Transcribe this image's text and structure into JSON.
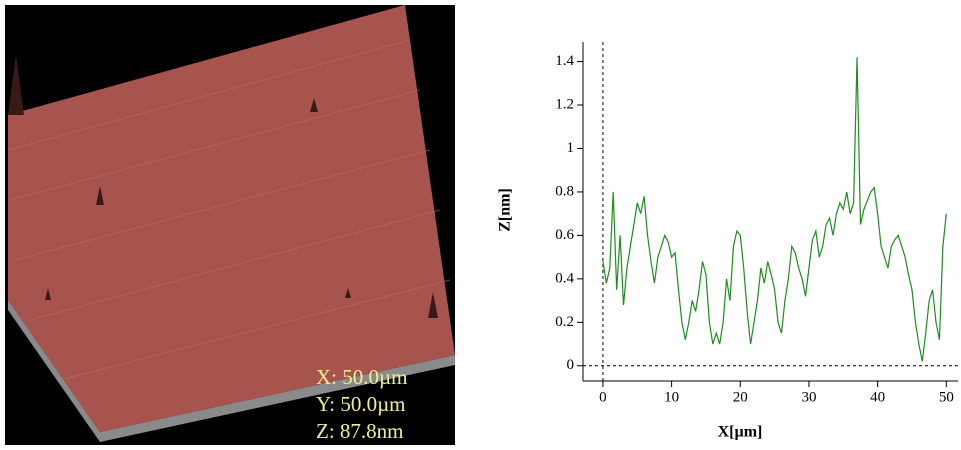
{
  "afm_image": {
    "labels": [
      "X: 50.0µm",
      "Y: 50.0µm",
      "Z: 87.8nm"
    ]
  },
  "chart_data": {
    "type": "line",
    "x_label": "X[µm]",
    "y_label": "Z[nm]",
    "x": [
      0,
      0.5,
      1,
      1.5,
      2,
      2.5,
      3,
      3.5,
      4,
      4.5,
      5,
      5.5,
      6,
      6.5,
      7,
      7.5,
      8,
      8.5,
      9,
      9.5,
      10,
      10.5,
      11,
      11.5,
      12,
      12.5,
      13,
      13.5,
      14,
      14.5,
      15,
      15.5,
      16,
      16.5,
      17,
      17.5,
      18,
      18.5,
      19,
      19.5,
      20,
      20.5,
      21,
      21.5,
      22,
      22.5,
      23,
      23.5,
      24,
      24.5,
      25,
      25.5,
      26,
      26.5,
      27,
      27.5,
      28,
      28.5,
      29,
      29.5,
      30,
      30.5,
      31,
      31.5,
      32,
      32.5,
      33,
      33.5,
      34,
      34.5,
      35,
      35.5,
      36,
      36.5,
      37,
      37.5,
      38,
      38.5,
      39,
      39.5,
      40,
      40.5,
      41,
      41.5,
      42,
      42.5,
      43,
      43.5,
      44,
      44.5,
      45,
      45.5,
      46,
      46.5,
      47,
      47.5,
      48,
      48.5,
      49,
      49.5,
      50
    ],
    "series": [
      {
        "color": "#1e8c1e",
        "values": [
          0.48,
          0.38,
          0.45,
          0.8,
          0.35,
          0.6,
          0.28,
          0.45,
          0.55,
          0.65,
          0.75,
          0.7,
          0.78,
          0.6,
          0.48,
          0.38,
          0.5,
          0.55,
          0.6,
          0.57,
          0.5,
          0.52,
          0.35,
          0.2,
          0.12,
          0.2,
          0.3,
          0.25,
          0.35,
          0.48,
          0.42,
          0.2,
          0.1,
          0.15,
          0.1,
          0.2,
          0.4,
          0.3,
          0.55,
          0.62,
          0.6,
          0.45,
          0.25,
          0.1,
          0.2,
          0.3,
          0.45,
          0.38,
          0.48,
          0.42,
          0.35,
          0.2,
          0.15,
          0.3,
          0.4,
          0.55,
          0.52,
          0.45,
          0.4,
          0.32,
          0.45,
          0.58,
          0.62,
          0.5,
          0.55,
          0.65,
          0.68,
          0.6,
          0.7,
          0.75,
          0.72,
          0.8,
          0.7,
          0.75,
          1.42,
          0.65,
          0.72,
          0.76,
          0.8,
          0.82,
          0.7,
          0.55,
          0.5,
          0.45,
          0.55,
          0.58,
          0.6,
          0.55,
          0.5,
          0.42,
          0.35,
          0.2,
          0.1,
          0.02,
          0.15,
          0.3,
          0.35,
          0.2,
          0.12,
          0.55,
          0.7
        ]
      }
    ],
    "xlim": [
      -2.9,
      51.7
    ],
    "ylim": [
      -0.07,
      1.49
    ],
    "xticks": [
      0,
      10,
      20,
      30,
      40,
      50
    ],
    "yticks": [
      0,
      0.2,
      0.4,
      0.6,
      0.8,
      1,
      1.2,
      1.4
    ],
    "zero_lines": true
  }
}
